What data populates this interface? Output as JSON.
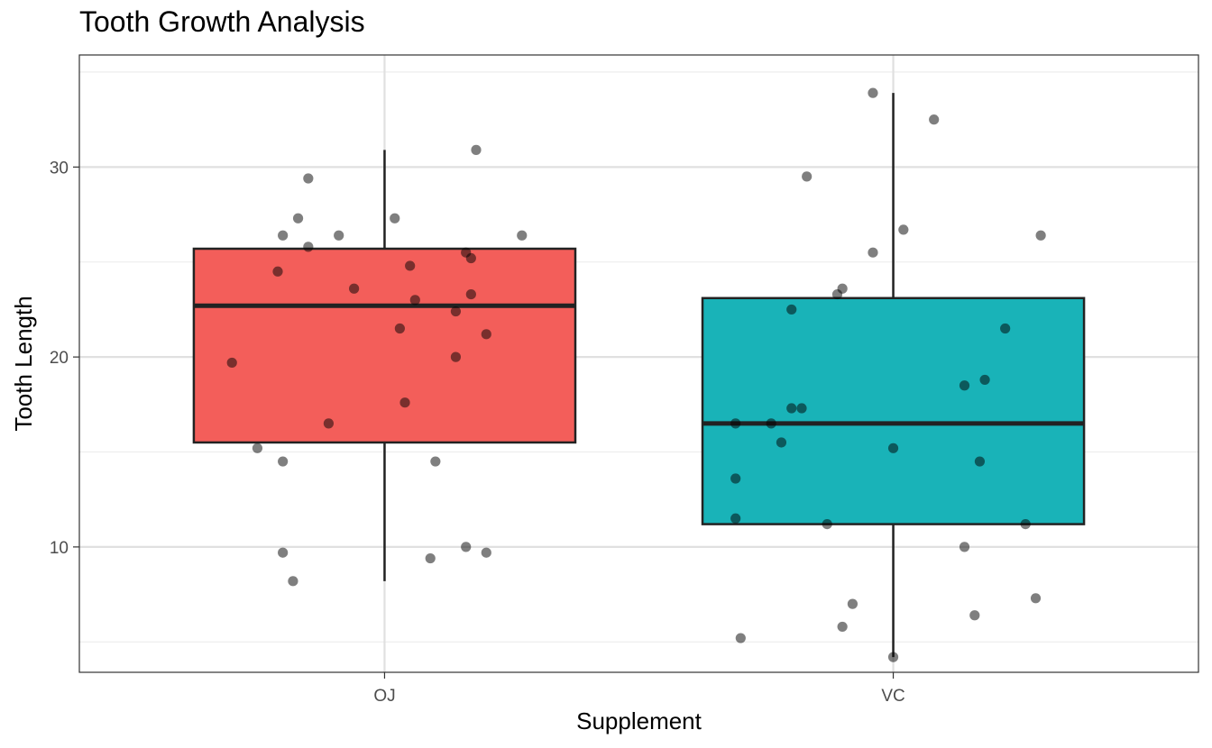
{
  "chart_data": {
    "type": "boxplot",
    "title": "Tooth Growth Analysis",
    "xlabel": "Supplement",
    "ylabel": "Tooth Length",
    "categories": [
      "OJ",
      "VC"
    ],
    "ylim": [
      3.4,
      35.9
    ],
    "yticks": [
      10,
      20,
      30
    ],
    "y_minor_ticks": [
      5,
      15,
      25,
      35
    ],
    "grid": true,
    "legend": "none",
    "boxes": [
      {
        "category": "OJ",
        "color": "#F35E5A",
        "min": 8.2,
        "q1": 15.5,
        "median": 22.7,
        "q3": 25.7,
        "max": 30.9
      },
      {
        "category": "VC",
        "color": "#19B3B8",
        "min": 4.2,
        "q1": 11.2,
        "median": 16.5,
        "q3": 23.1,
        "max": 33.9
      }
    ],
    "points": [
      {
        "category": "OJ",
        "jitter": -0.15,
        "y": 29.4
      },
      {
        "category": "OJ",
        "jitter": 0.18,
        "y": 30.9
      },
      {
        "category": "OJ",
        "jitter": -0.17,
        "y": 27.3
      },
      {
        "category": "OJ",
        "jitter": 0.02,
        "y": 27.3
      },
      {
        "category": "OJ",
        "jitter": -0.2,
        "y": 26.4
      },
      {
        "category": "OJ",
        "jitter": -0.09,
        "y": 26.4
      },
      {
        "category": "OJ",
        "jitter": 0.27,
        "y": 26.4
      },
      {
        "category": "OJ",
        "jitter": -0.15,
        "y": 25.8
      },
      {
        "category": "OJ",
        "jitter": 0.16,
        "y": 25.5
      },
      {
        "category": "OJ",
        "jitter": 0.17,
        "y": 25.2
      },
      {
        "category": "OJ",
        "jitter": 0.05,
        "y": 24.8
      },
      {
        "category": "OJ",
        "jitter": -0.21,
        "y": 24.5
      },
      {
        "category": "OJ",
        "jitter": -0.06,
        "y": 23.6
      },
      {
        "category": "OJ",
        "jitter": 0.17,
        "y": 23.3
      },
      {
        "category": "OJ",
        "jitter": 0.06,
        "y": 23.0
      },
      {
        "category": "OJ",
        "jitter": 0.14,
        "y": 22.4
      },
      {
        "category": "OJ",
        "jitter": 0.03,
        "y": 21.5
      },
      {
        "category": "OJ",
        "jitter": 0.2,
        "y": 21.2
      },
      {
        "category": "OJ",
        "jitter": 0.14,
        "y": 20.0
      },
      {
        "category": "OJ",
        "jitter": -0.3,
        "y": 19.7
      },
      {
        "category": "OJ",
        "jitter": 0.04,
        "y": 17.6
      },
      {
        "category": "OJ",
        "jitter": -0.11,
        "y": 16.5
      },
      {
        "category": "OJ",
        "jitter": -0.25,
        "y": 15.2
      },
      {
        "category": "OJ",
        "jitter": -0.2,
        "y": 14.5
      },
      {
        "category": "OJ",
        "jitter": 0.1,
        "y": 14.5
      },
      {
        "category": "OJ",
        "jitter": 0.16,
        "y": 10.0
      },
      {
        "category": "OJ",
        "jitter": -0.2,
        "y": 9.7
      },
      {
        "category": "OJ",
        "jitter": 0.2,
        "y": 9.7
      },
      {
        "category": "OJ",
        "jitter": 0.09,
        "y": 9.4
      },
      {
        "category": "OJ",
        "jitter": -0.18,
        "y": 8.2
      },
      {
        "category": "VC",
        "jitter": -0.04,
        "y": 33.9
      },
      {
        "category": "VC",
        "jitter": 0.08,
        "y": 32.5
      },
      {
        "category": "VC",
        "jitter": -0.17,
        "y": 29.5
      },
      {
        "category": "VC",
        "jitter": 0.02,
        "y": 26.7
      },
      {
        "category": "VC",
        "jitter": 0.29,
        "y": 26.4
      },
      {
        "category": "VC",
        "jitter": -0.04,
        "y": 25.5
      },
      {
        "category": "VC",
        "jitter": -0.1,
        "y": 23.6
      },
      {
        "category": "VC",
        "jitter": -0.11,
        "y": 23.3
      },
      {
        "category": "VC",
        "jitter": -0.2,
        "y": 22.5
      },
      {
        "category": "VC",
        "jitter": 0.22,
        "y": 21.5
      },
      {
        "category": "VC",
        "jitter": 0.18,
        "y": 18.8
      },
      {
        "category": "VC",
        "jitter": 0.14,
        "y": 18.5
      },
      {
        "category": "VC",
        "jitter": -0.2,
        "y": 17.3
      },
      {
        "category": "VC",
        "jitter": -0.18,
        "y": 17.3
      },
      {
        "category": "VC",
        "jitter": -0.31,
        "y": 16.5
      },
      {
        "category": "VC",
        "jitter": -0.24,
        "y": 16.5
      },
      {
        "category": "VC",
        "jitter": -0.22,
        "y": 15.5
      },
      {
        "category": "VC",
        "jitter": 0.0,
        "y": 15.2
      },
      {
        "category": "VC",
        "jitter": 0.17,
        "y": 14.5
      },
      {
        "category": "VC",
        "jitter": -0.31,
        "y": 13.6
      },
      {
        "category": "VC",
        "jitter": -0.31,
        "y": 11.5
      },
      {
        "category": "VC",
        "jitter": -0.13,
        "y": 11.2
      },
      {
        "category": "VC",
        "jitter": 0.26,
        "y": 11.2
      },
      {
        "category": "VC",
        "jitter": 0.14,
        "y": 10.0
      },
      {
        "category": "VC",
        "jitter": 0.28,
        "y": 7.3
      },
      {
        "category": "VC",
        "jitter": -0.08,
        "y": 7.0
      },
      {
        "category": "VC",
        "jitter": 0.16,
        "y": 6.4
      },
      {
        "category": "VC",
        "jitter": -0.1,
        "y": 5.8
      },
      {
        "category": "VC",
        "jitter": -0.3,
        "y": 5.2
      },
      {
        "category": "VC",
        "jitter": 0.0,
        "y": 4.2
      }
    ],
    "point_color": "#000000",
    "point_alpha": 0.5
  }
}
